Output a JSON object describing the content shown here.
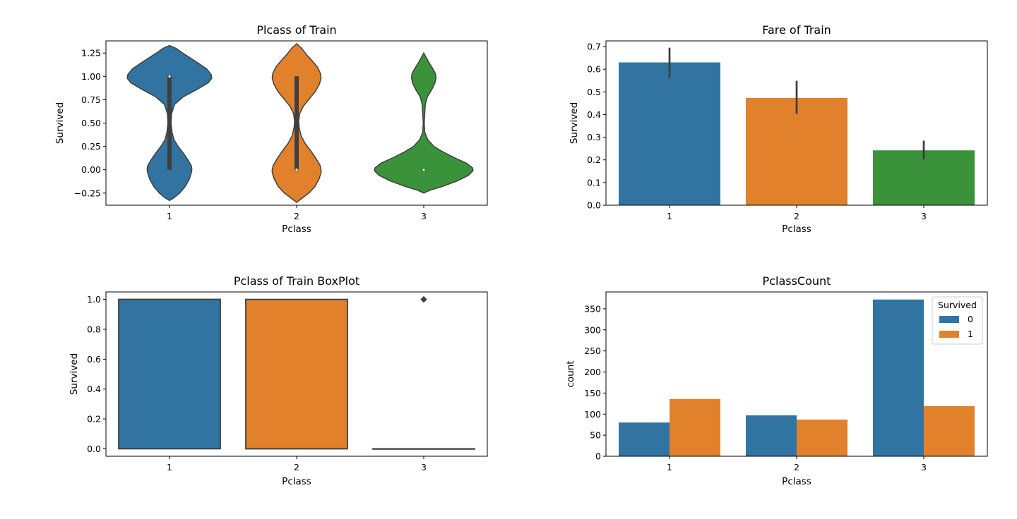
{
  "colors": {
    "class1": "#3274a1",
    "class2": "#e1812c",
    "class3": "#3a923a",
    "survived0": "#3274a1",
    "survived1": "#e1812c",
    "outline": "#3f3f3f",
    "errbar": "#3c3c3c"
  },
  "chart_data": [
    {
      "type": "violin",
      "title": "Plcass of Train",
      "xlabel": "Pclass",
      "ylabel": "Survived",
      "categories": [
        "1",
        "2",
        "3"
      ],
      "ylim": [
        -0.38,
        1.38
      ],
      "yticks": [
        -0.25,
        0.0,
        0.25,
        0.5,
        0.75,
        1.0,
        1.25
      ],
      "ytick_labels": [
        "−0.25",
        "0.00",
        "0.25",
        "0.50",
        "0.75",
        "1.00",
        "1.25"
      ],
      "violins": [
        {
          "category": "1",
          "color_key": "class1",
          "profile": [
            [
              -0.33,
              0.0
            ],
            [
              -0.3,
              0.09
            ],
            [
              -0.25,
              0.2
            ],
            [
              -0.18,
              0.31
            ],
            [
              -0.1,
              0.39
            ],
            [
              -0.03,
              0.43
            ],
            [
              0.0,
              0.44
            ],
            [
              0.04,
              0.43
            ],
            [
              0.1,
              0.37
            ],
            [
              0.18,
              0.27
            ],
            [
              0.25,
              0.17
            ],
            [
              0.32,
              0.09
            ],
            [
              0.4,
              0.05
            ],
            [
              0.5,
              0.03
            ],
            [
              0.6,
              0.04
            ],
            [
              0.7,
              0.1
            ],
            [
              0.78,
              0.27
            ],
            [
              0.86,
              0.54
            ],
            [
              0.93,
              0.76
            ],
            [
              0.98,
              0.83
            ],
            [
              1.02,
              0.82
            ],
            [
              1.08,
              0.73
            ],
            [
              1.14,
              0.57
            ],
            [
              1.2,
              0.4
            ],
            [
              1.26,
              0.23
            ],
            [
              1.3,
              0.13
            ],
            [
              1.33,
              0.0
            ]
          ],
          "box": {
            "q1": 0.0,
            "median": 1.0,
            "q3": 1.0
          },
          "whisker": [
            0.0,
            1.0
          ]
        },
        {
          "category": "2",
          "color_key": "class2",
          "profile": [
            [
              -0.35,
              0.0
            ],
            [
              -0.3,
              0.12
            ],
            [
              -0.25,
              0.24
            ],
            [
              -0.18,
              0.36
            ],
            [
              -0.1,
              0.44
            ],
            [
              -0.03,
              0.48
            ],
            [
              0.0,
              0.48
            ],
            [
              0.05,
              0.46
            ],
            [
              0.12,
              0.38
            ],
            [
              0.2,
              0.28
            ],
            [
              0.28,
              0.17
            ],
            [
              0.36,
              0.09
            ],
            [
              0.45,
              0.05
            ],
            [
              0.52,
              0.04
            ],
            [
              0.6,
              0.06
            ],
            [
              0.68,
              0.13
            ],
            [
              0.76,
              0.25
            ],
            [
              0.84,
              0.37
            ],
            [
              0.92,
              0.45
            ],
            [
              0.98,
              0.48
            ],
            [
              1.03,
              0.47
            ],
            [
              1.1,
              0.41
            ],
            [
              1.17,
              0.3
            ],
            [
              1.23,
              0.2
            ],
            [
              1.3,
              0.1
            ],
            [
              1.35,
              0.0
            ]
          ],
          "box": {
            "q1": 0.0,
            "median": 0.0,
            "q3": 1.0
          },
          "whisker": [
            0.0,
            1.0
          ]
        },
        {
          "category": "3",
          "color_key": "class3",
          "profile": [
            [
              -0.25,
              0.0
            ],
            [
              -0.22,
              0.12
            ],
            [
              -0.18,
              0.36
            ],
            [
              -0.12,
              0.66
            ],
            [
              -0.06,
              0.88
            ],
            [
              -0.01,
              0.97
            ],
            [
              0.02,
              0.96
            ],
            [
              0.07,
              0.84
            ],
            [
              0.13,
              0.6
            ],
            [
              0.19,
              0.38
            ],
            [
              0.25,
              0.2
            ],
            [
              0.32,
              0.08
            ],
            [
              0.4,
              0.02
            ],
            [
              0.5,
              0.01
            ],
            [
              0.6,
              0.02
            ],
            [
              0.7,
              0.03
            ],
            [
              0.78,
              0.07
            ],
            [
              0.86,
              0.16
            ],
            [
              0.93,
              0.22
            ],
            [
              0.98,
              0.24
            ],
            [
              1.03,
              0.23
            ],
            [
              1.09,
              0.17
            ],
            [
              1.15,
              0.1
            ],
            [
              1.2,
              0.05
            ],
            [
              1.25,
              0.0
            ]
          ],
          "box": {
            "q1": 0.0,
            "median": 0.0,
            "q3": 0.0
          },
          "whisker": [
            0.0,
            0.0
          ]
        }
      ]
    },
    {
      "type": "bar",
      "title": "Fare of Train",
      "xlabel": "Pclass",
      "ylabel": "Survived",
      "categories": [
        "1",
        "2",
        "3"
      ],
      "values": [
        0.63,
        0.473,
        0.242
      ],
      "errors": [
        [
          0.56,
          0.695
        ],
        [
          0.404,
          0.549
        ],
        [
          0.202,
          0.285
        ]
      ],
      "color_keys": [
        "class1",
        "class2",
        "class3"
      ],
      "ylim": [
        0,
        0.725
      ],
      "yticks": [
        0.0,
        0.1,
        0.2,
        0.3,
        0.4,
        0.5,
        0.6,
        0.7
      ],
      "ytick_labels": [
        "0.0",
        "0.1",
        "0.2",
        "0.3",
        "0.4",
        "0.5",
        "0.6",
        "0.7"
      ]
    },
    {
      "type": "box",
      "title": "Pclass of Train BoxPlot",
      "xlabel": "Pclass",
      "ylabel": "Survived",
      "categories": [
        "1",
        "2",
        "3"
      ],
      "boxes": [
        {
          "category": "1",
          "color_key": "class1",
          "q1": 0.0,
          "median": 1.0,
          "q3": 1.0,
          "whislo": 0.0,
          "whishi": 1.0,
          "outliers": []
        },
        {
          "category": "2",
          "color_key": "class2",
          "q1": 0.0,
          "median": 0.0,
          "q3": 1.0,
          "whislo": 0.0,
          "whishi": 1.0,
          "outliers": []
        },
        {
          "category": "3",
          "color_key": "class3",
          "q1": 0.0,
          "median": 0.0,
          "q3": 0.0,
          "whislo": 0.0,
          "whishi": 0.0,
          "outliers": [
            1.0
          ]
        }
      ],
      "ylim": [
        -0.05,
        1.05
      ],
      "yticks": [
        0.0,
        0.2,
        0.4,
        0.6,
        0.8,
        1.0
      ],
      "ytick_labels": [
        "0.0",
        "0.2",
        "0.4",
        "0.6",
        "0.8",
        "1.0"
      ]
    },
    {
      "type": "bar",
      "title": "PclassCount",
      "xlabel": "Pclass",
      "ylabel": "count",
      "categories": [
        "1",
        "2",
        "3"
      ],
      "series": [
        {
          "name": "0",
          "values": [
            80,
            97,
            372
          ],
          "color_key": "survived0"
        },
        {
          "name": "1",
          "values": [
            136,
            87,
            119
          ],
          "color_key": "survived1"
        }
      ],
      "legend": {
        "title": "Survived",
        "location": "upper right"
      },
      "ylim": [
        0,
        390
      ],
      "yticks": [
        0,
        50,
        100,
        150,
        200,
        250,
        300,
        350
      ],
      "ytick_labels": [
        "0",
        "50",
        "100",
        "150",
        "200",
        "250",
        "300",
        "350"
      ]
    }
  ]
}
